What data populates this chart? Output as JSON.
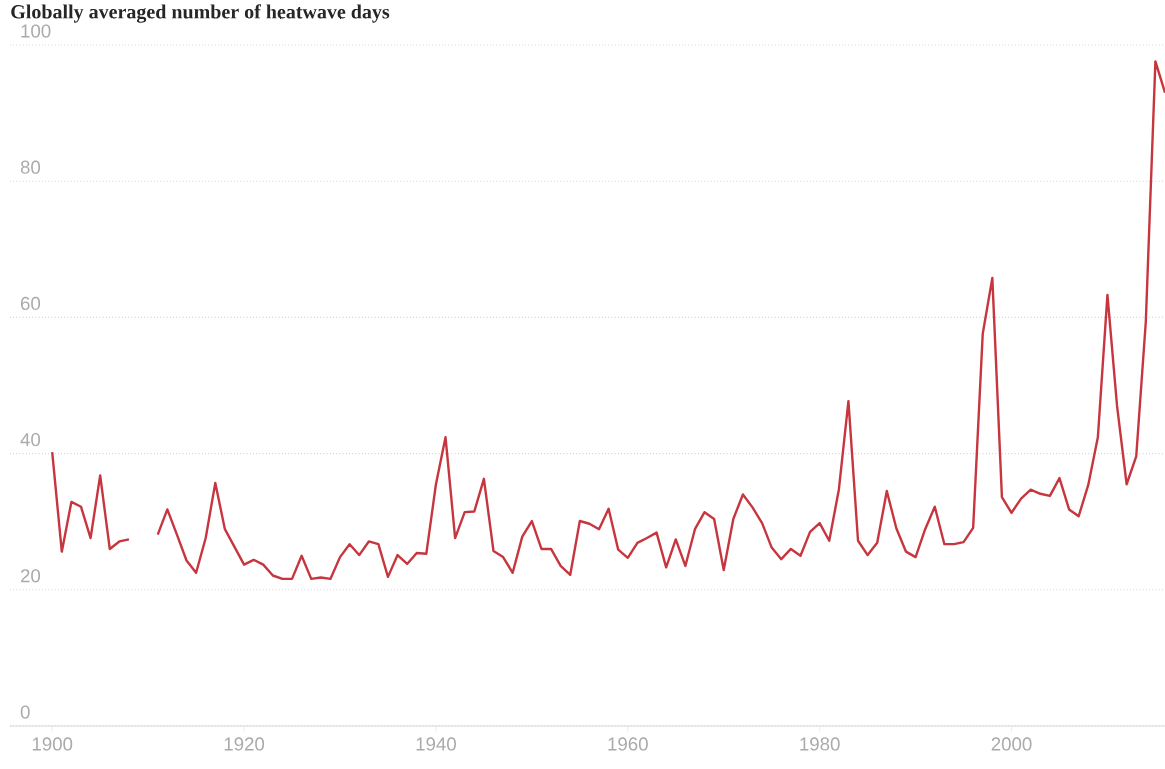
{
  "chart_data": {
    "type": "line",
    "title": "Globally averaged number of heatwave days",
    "x": [
      1900,
      1901,
      1902,
      1903,
      1904,
      1905,
      1906,
      1907,
      1908,
      1909,
      1910,
      1911,
      1912,
      1913,
      1914,
      1915,
      1916,
      1917,
      1918,
      1919,
      1920,
      1921,
      1922,
      1923,
      1924,
      1925,
      1926,
      1927,
      1928,
      1929,
      1930,
      1931,
      1932,
      1933,
      1934,
      1935,
      1936,
      1937,
      1938,
      1939,
      1940,
      1941,
      1942,
      1943,
      1944,
      1945,
      1946,
      1947,
      1948,
      1949,
      1950,
      1951,
      1952,
      1953,
      1954,
      1955,
      1956,
      1957,
      1958,
      1959,
      1960,
      1961,
      1962,
      1963,
      1964,
      1965,
      1966,
      1967,
      1968,
      1969,
      1970,
      1971,
      1972,
      1973,
      1974,
      1975,
      1976,
      1977,
      1978,
      1979,
      1980,
      1981,
      1982,
      1983,
      1984,
      1985,
      1986,
      1987,
      1988,
      1989,
      1990,
      1991,
      1992,
      1993,
      1994,
      1995,
      1996,
      1997,
      1998,
      1999,
      2000,
      2001,
      2002,
      2003,
      2004,
      2005,
      2006,
      2007,
      2008,
      2009,
      2010,
      2011,
      2012,
      2013,
      2014,
      2015,
      2016
    ],
    "values": [
      40.2,
      25.6,
      32.9,
      32.2,
      27.6,
      36.8,
      26.0,
      27.1,
      27.4,
      null,
      null,
      28.1,
      31.8,
      28.1,
      24.3,
      22.5,
      27.6,
      35.7,
      28.9,
      26.3,
      23.7,
      24.4,
      23.7,
      22.1,
      21.6,
      21.6,
      25.0,
      21.6,
      21.8,
      21.6,
      24.8,
      26.7,
      25.1,
      27.1,
      26.7,
      21.9,
      25.1,
      23.8,
      25.4,
      25.3,
      35.5,
      42.4,
      27.6,
      31.4,
      31.5,
      36.3,
      25.7,
      24.8,
      22.5,
      27.8,
      30.1,
      26.0,
      26.0,
      23.5,
      22.2,
      30.1,
      29.7,
      28.9,
      31.9,
      25.9,
      24.7,
      26.9,
      27.6,
      28.4,
      23.3,
      27.4,
      23.5,
      28.9,
      31.4,
      30.4,
      22.9,
      30.4,
      34.0,
      32.1,
      29.8,
      26.2,
      24.5,
      26.0,
      25.0,
      28.5,
      29.8,
      27.2,
      34.7,
      47.7,
      27.2,
      25.1,
      26.9,
      34.5,
      29.0,
      25.6,
      24.8,
      28.9,
      32.2,
      26.7,
      26.7,
      27.0,
      29.1,
      57.6,
      65.8,
      33.6,
      31.3,
      33.4,
      34.7,
      34.1,
      33.8,
      36.4,
      31.8,
      30.8,
      35.4,
      42.4,
      63.3,
      47.0,
      35.5,
      39.6,
      59.4,
      97.6,
      93.0
    ],
    "color": "#c7363f",
    "xlim": [
      1895.6,
      2016
    ],
    "ylim": [
      0,
      100
    ],
    "xticks": [
      1900,
      1920,
      1940,
      1960,
      1980,
      2000
    ],
    "yticks": [
      0,
      20,
      40,
      60,
      80,
      100
    ],
    "grid": "y"
  }
}
